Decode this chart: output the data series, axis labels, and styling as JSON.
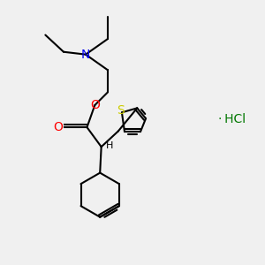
{
  "bg_color": "#f0f0f0",
  "atom_colors": {
    "N": "#0000ee",
    "O": "#ff0000",
    "S": "#cccc00",
    "C": "#000000",
    "H": "#000000"
  },
  "bond_color": "#000000",
  "hcl_text": "HCl",
  "hcl_color": "#007700",
  "bond_lw": 1.5,
  "font_size": 9
}
